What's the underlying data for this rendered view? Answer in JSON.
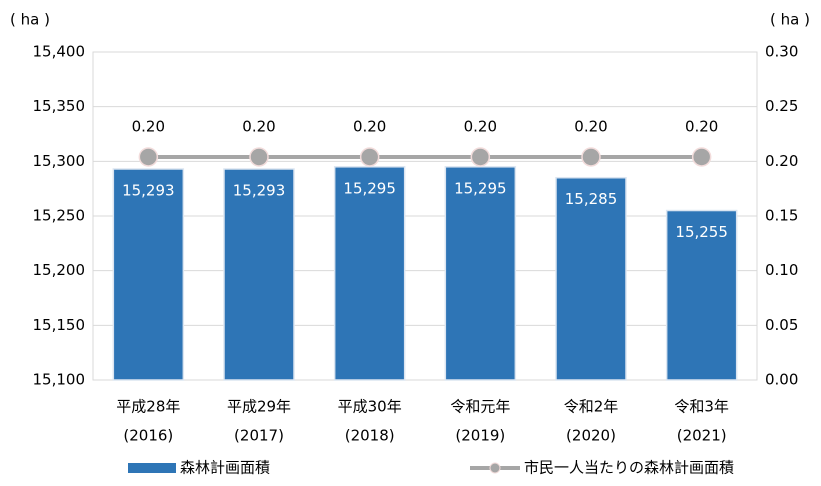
{
  "chart_data": {
    "type": "bar_line",
    "y_label": "( ha )",
    "y2_label": "( ha )",
    "categories": [
      "平成28年",
      "平成29年",
      "平成30年",
      "令和元年",
      "令和2年",
      "令和3年"
    ],
    "category_sublabels": [
      "(2016)",
      "(2017)",
      "(2018)",
      "(2019)",
      "(2020)",
      "(2021)"
    ],
    "series": [
      {
        "name": "森林計画面積",
        "type": "bar",
        "color": "#2e75b6",
        "values": [
          15293,
          15293,
          15295,
          15295,
          15285,
          15255
        ],
        "value_labels": [
          "15,293",
          "15,293",
          "15,295",
          "15,295",
          "15,285",
          "15,255"
        ]
      },
      {
        "name": "市民一人当たりの森林計画面積",
        "type": "line",
        "axis": "y2",
        "color": "#a6a6a6",
        "values": [
          0.204,
          0.204,
          0.204,
          0.204,
          0.204,
          0.204
        ],
        "value_labels": [
          "0.20",
          "0.20",
          "0.20",
          "0.20",
          "0.20",
          "0.20"
        ]
      }
    ],
    "ylim": [
      15100,
      15400
    ],
    "yticks": [
      {
        "value": 15100,
        "label": "15,100"
      },
      {
        "value": 15150,
        "label": "15,150"
      },
      {
        "value": 15200,
        "label": "15,200"
      },
      {
        "value": 15250,
        "label": "15,250"
      },
      {
        "value": 15300,
        "label": "15,300"
      },
      {
        "value": 15350,
        "label": "15,350"
      },
      {
        "value": 15400,
        "label": "15,400"
      }
    ],
    "y2lim": [
      0,
      0.3
    ],
    "y2ticks": [
      {
        "value": 0,
        "label": "0.00"
      },
      {
        "value": 0.05,
        "label": "0.05"
      },
      {
        "value": 0.1,
        "label": "0.10"
      },
      {
        "value": 0.15,
        "label": "0.15"
      },
      {
        "value": 0.2,
        "label": "0.20"
      },
      {
        "value": 0.25,
        "label": "0.25"
      },
      {
        "value": 0.3,
        "label": "0.30"
      }
    ],
    "grid": true
  }
}
